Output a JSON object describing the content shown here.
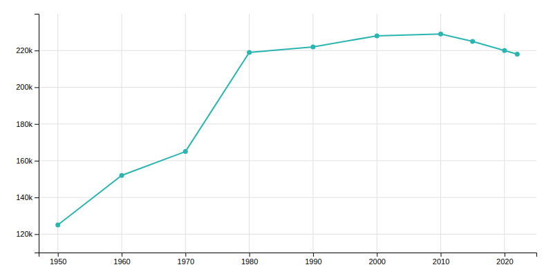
{
  "chart_data": {
    "type": "line",
    "x": [
      1950,
      1960,
      1970,
      1980,
      1990,
      2000,
      2010,
      2015,
      2020,
      2022
    ],
    "values": [
      125000,
      152000,
      165000,
      219000,
      222000,
      228000,
      229000,
      225000,
      220000,
      218000
    ],
    "color": "#2ab5b0",
    "marker": "circle",
    "xlim": [
      1947,
      2025
    ],
    "ylim": [
      110000,
      240000
    ],
    "xticks": [
      1950,
      1960,
      1970,
      1980,
      1990,
      2000,
      2010,
      2020
    ],
    "yticks": [
      {
        "value": 120000,
        "label": "120k"
      },
      {
        "value": 140000,
        "label": "140k"
      },
      {
        "value": 160000,
        "label": "160k"
      },
      {
        "value": 180000,
        "label": "180k"
      },
      {
        "value": 200000,
        "label": "200k"
      },
      {
        "value": 220000,
        "label": "220k"
      }
    ],
    "grid": true
  }
}
